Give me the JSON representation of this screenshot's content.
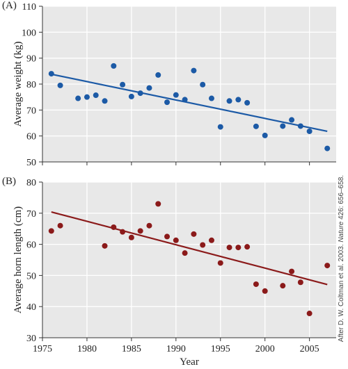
{
  "credit": {
    "prefix": "After D. W. Coltman et al. 2003. ",
    "journal": "Nature",
    "suffix": " 426: 656–658."
  },
  "chart_data": [
    {
      "type": "scatter",
      "panel": "(A)",
      "ylabel": "Average weight (kg)",
      "xlabel": "",
      "xlim": [
        1975,
        2008
      ],
      "ylim": [
        50,
        110
      ],
      "xticks": [
        1975,
        1980,
        1985,
        1990,
        1995,
        2000,
        2005
      ],
      "yticks": [
        50,
        60,
        70,
        80,
        90,
        100,
        110
      ],
      "grid": true,
      "color": "#1c5aa6",
      "background": "#e8e8e8",
      "points": [
        [
          1976,
          84
        ],
        [
          1977,
          79.5
        ],
        [
          1979,
          74.5
        ],
        [
          1980,
          75
        ],
        [
          1981,
          75.7
        ],
        [
          1982,
          73.5
        ],
        [
          1983,
          87
        ],
        [
          1984,
          79.8
        ],
        [
          1985,
          75.2
        ],
        [
          1986,
          76.5
        ],
        [
          1987,
          78.5
        ],
        [
          1988,
          83.5
        ],
        [
          1989,
          73
        ],
        [
          1990,
          75.8
        ],
        [
          1991,
          74
        ],
        [
          1992,
          85.2
        ],
        [
          1993,
          79.8
        ],
        [
          1994,
          74.5
        ],
        [
          1995,
          63.5
        ],
        [
          1996,
          73.5
        ],
        [
          1997,
          74
        ],
        [
          1998,
          72.8
        ],
        [
          1999,
          63.7
        ],
        [
          2000,
          60.2
        ],
        [
          2002,
          63.8
        ],
        [
          2003,
          66.2
        ],
        [
          2004,
          63.8
        ],
        [
          2005,
          61.8
        ],
        [
          2007,
          55.2
        ]
      ],
      "trendline": [
        [
          1976,
          83.8
        ],
        [
          2007,
          61.8
        ]
      ]
    },
    {
      "type": "scatter",
      "panel": "(B)",
      "ylabel": "Average horn length (cm)",
      "xlabel": "Year",
      "xlim": [
        1975,
        2008
      ],
      "ylim": [
        30,
        80
      ],
      "xticks": [
        1975,
        1980,
        1985,
        1990,
        1995,
        2000,
        2005
      ],
      "yticks": [
        30,
        40,
        50,
        60,
        70,
        80
      ],
      "grid": true,
      "color": "#8b1a1a",
      "background": "#e8e8e8",
      "points": [
        [
          1976,
          64.3
        ],
        [
          1977,
          66
        ],
        [
          1982,
          59.5
        ],
        [
          1983,
          65.5
        ],
        [
          1984,
          64
        ],
        [
          1985,
          62.2
        ],
        [
          1986,
          64.3
        ],
        [
          1987,
          66
        ],
        [
          1988,
          73
        ],
        [
          1989,
          62.5
        ],
        [
          1990,
          61.3
        ],
        [
          1991,
          57.2
        ],
        [
          1992,
          63.3
        ],
        [
          1993,
          59.8
        ],
        [
          1994,
          61.3
        ],
        [
          1995,
          54
        ],
        [
          1996,
          59
        ],
        [
          1997,
          59
        ],
        [
          1998,
          59.2
        ],
        [
          1999,
          47.2
        ],
        [
          2000,
          45
        ],
        [
          2002,
          46.7
        ],
        [
          2003,
          51.3
        ],
        [
          2004,
          47.8
        ],
        [
          2005,
          37.8
        ],
        [
          2007,
          53.2
        ]
      ],
      "trendline": [
        [
          1976,
          70.4
        ],
        [
          2007,
          47.1
        ]
      ]
    }
  ]
}
